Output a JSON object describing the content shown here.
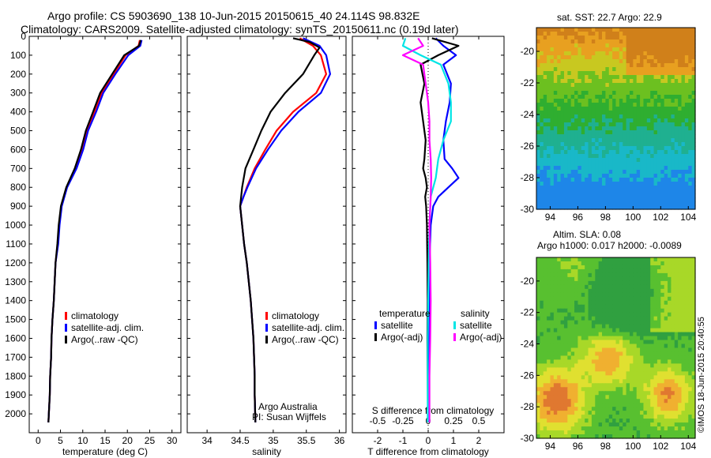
{
  "title": {
    "line1": "Argo profile: CS 5903690_138 10-Jun-2015 20150615_40 24.114S 98.832E",
    "line2": "Climatology: CARS2009. Satellite-adjusted climatology: synTS_20150611.nc (0.19d later)"
  },
  "colors": {
    "climatology": "#ff0000",
    "satellite": "#0000ff",
    "argo": "#000000",
    "sat_salinity": "#00e5e5",
    "argo_salinity": "#ff00ff"
  },
  "chart_data": [
    {
      "type": "line",
      "xlabel": "temperature (deg C)",
      "ylabel": "",
      "xlim": [
        -2,
        32
      ],
      "ylim": [
        2100,
        0
      ],
      "xticks": [
        "0",
        "5",
        "10",
        "15",
        "20",
        "25",
        "30"
      ],
      "yticks": [
        "0",
        "100",
        "200",
        "300",
        "400",
        "500",
        "600",
        "700",
        "800",
        "900",
        "1000",
        "1100",
        "1200",
        "1300",
        "1400",
        "1500",
        "1600",
        "1700",
        "1800",
        "1900",
        "2000"
      ],
      "legend": [
        "climatology",
        "satellite-adj. clim.",
        "Argo(..raw -QC)"
      ],
      "legend_position": "lower-center",
      "series": [
        {
          "name": "climatology",
          "x": [
            22.8,
            22.5,
            19.6,
            16.9,
            14.2,
            12.6,
            10.9,
            9.8,
            8.4,
            6.4,
            5.2,
            4.7,
            4.4,
            3.9,
            3.5,
            3.2,
            3.0,
            2.9,
            2.7,
            2.6,
            2.4,
            2.3
          ],
          "y": [
            20,
            50,
            100,
            200,
            300,
            400,
            500,
            600,
            700,
            800,
            900,
            1000,
            1100,
            1200,
            1400,
            1500,
            1600,
            1700,
            1800,
            1900,
            2000,
            2045
          ]
        },
        {
          "name": "satellite-adj. clim.",
          "x": [
            23.2,
            22.9,
            20.2,
            17.3,
            14.6,
            13.0,
            11.2,
            10.1,
            8.6,
            6.5,
            5.3,
            4.8,
            4.5,
            3.9,
            3.5,
            3.2,
            3.0,
            2.9,
            2.7,
            2.6,
            2.4,
            2.3
          ],
          "y": [
            20,
            50,
            100,
            200,
            300,
            400,
            500,
            600,
            700,
            800,
            900,
            1000,
            1100,
            1200,
            1400,
            1500,
            1600,
            1700,
            1800,
            1900,
            2000,
            2045
          ]
        },
        {
          "name": "Argo(..raw -QC)",
          "x": [
            23.0,
            22.6,
            19.3,
            16.6,
            13.9,
            12.3,
            10.7,
            9.6,
            8.2,
            6.3,
            5.1,
            4.6,
            4.3,
            3.9,
            3.5,
            3.2,
            3.0,
            2.9,
            2.7,
            2.6,
            2.4,
            2.3
          ],
          "y": [
            20,
            50,
            100,
            200,
            300,
            400,
            500,
            600,
            700,
            800,
            900,
            1000,
            1100,
            1200,
            1400,
            1500,
            1600,
            1700,
            1800,
            1900,
            2000,
            2045
          ]
        }
      ]
    },
    {
      "type": "line",
      "xlabel": "salinity",
      "xlim": [
        33.7,
        36.1
      ],
      "ylim": [
        2100,
        0
      ],
      "xticks": [
        "34",
        "34.5",
        "35",
        "35.5",
        "36"
      ],
      "legend": [
        "climatology",
        "satellite-adj. clim.",
        "Argo(..raw -QC)"
      ],
      "legend_position": "lower-right",
      "annotations": [
        "Argo Australia",
        "PI: Susan Wijffels"
      ],
      "series": [
        {
          "name": "climatology",
          "x": [
            35.4,
            35.6,
            35.72,
            35.8,
            35.65,
            35.3,
            35.05,
            34.88,
            34.72,
            34.6,
            34.55,
            34.5,
            34.53,
            34.56,
            34.6,
            34.63,
            34.66,
            34.68,
            34.7,
            34.71,
            34.72,
            34.72,
            34.73
          ],
          "y": [
            10,
            50,
            100,
            200,
            300,
            400,
            500,
            600,
            700,
            800,
            850,
            900,
            1000,
            1100,
            1200,
            1300,
            1400,
            1500,
            1600,
            1700,
            1800,
            1900,
            2045
          ]
        },
        {
          "name": "satellite-adj. clim.",
          "x": [
            35.45,
            35.7,
            35.8,
            35.86,
            35.72,
            35.38,
            35.12,
            34.92,
            34.74,
            34.61,
            34.55,
            34.5,
            34.53,
            34.56,
            34.6,
            34.63,
            34.66,
            34.68,
            34.7,
            34.71,
            34.72,
            34.72,
            34.73
          ],
          "y": [
            10,
            50,
            100,
            200,
            300,
            400,
            500,
            600,
            700,
            800,
            850,
            900,
            1000,
            1100,
            1200,
            1300,
            1400,
            1500,
            1600,
            1700,
            1800,
            1900,
            2045
          ]
        },
        {
          "name": "Argo(..raw -QC)",
          "x": [
            35.3,
            35.55,
            35.7,
            35.62,
            35.45,
            35.18,
            34.96,
            34.82,
            34.7,
            34.58,
            34.53,
            34.5,
            34.53,
            34.56,
            34.6,
            34.63,
            34.66,
            34.68,
            34.7,
            34.71,
            34.72,
            34.72,
            34.73
          ],
          "y": [
            10,
            30,
            60,
            100,
            200,
            300,
            400,
            500,
            600,
            700,
            800,
            900,
            1000,
            1100,
            1200,
            1300,
            1400,
            1500,
            1600,
            1700,
            1800,
            1900,
            2045
          ]
        }
      ]
    },
    {
      "type": "line",
      "xlabel": "T difference from climatology",
      "xlim": [
        -3,
        3
      ],
      "ylim": [
        2100,
        0
      ],
      "xticks": [
        "-2",
        "-1",
        "0",
        "1",
        "2"
      ],
      "top_axis_label": "S difference from climatology",
      "top_xticks": [
        "-0.5",
        "-0.25",
        "0",
        "0.25",
        "0.5"
      ],
      "legend_groups": [
        {
          "title": "temperature",
          "entries": [
            "satellite",
            "Argo(-adj)"
          ]
        },
        {
          "title": "salinity",
          "entries": [
            "satellite",
            "Argo(-adj)"
          ]
        }
      ],
      "series": [
        {
          "name": "satellite",
          "group": "temperature",
          "x": [
            0.3,
            0.6,
            1.1,
            0.6,
            0.9,
            0.85,
            0.7,
            0.6,
            0.65,
            0.95,
            1.2,
            0.8,
            0.4,
            0.2,
            0.1,
            0.05,
            0.03,
            0.02,
            0.01,
            0.0
          ],
          "y": [
            10,
            50,
            100,
            150,
            250,
            350,
            450,
            550,
            650,
            700,
            750,
            800,
            850,
            900,
            1000,
            1200,
            1400,
            1600,
            1800,
            2045
          ]
        },
        {
          "name": "Argo(-adj)",
          "group": "temperature",
          "x": [
            0.15,
            1.2,
            0.4,
            -0.3,
            -0.15,
            -0.3,
            -0.2,
            -0.1,
            -0.15,
            -0.2,
            -0.1,
            -0.05,
            -0.12,
            -0.08,
            -0.05,
            -0.03,
            -0.02,
            -0.03,
            -0.02,
            -0.01
          ],
          "y": [
            10,
            50,
            100,
            150,
            250,
            350,
            450,
            550,
            650,
            700,
            750,
            800,
            850,
            900,
            1000,
            1200,
            1400,
            1600,
            1800,
            2045
          ]
        },
        {
          "name": "satellite",
          "group": "salinity",
          "x": [
            -0.9,
            -1.0,
            -0.3,
            0.5,
            0.8,
            0.9,
            0.9,
            0.6,
            0.4,
            0.3,
            0.1,
            0.05,
            0.02,
            0.0,
            -0.02,
            -0.02,
            -0.02
          ],
          "y": [
            10,
            50,
            100,
            150,
            250,
            350,
            450,
            550,
            650,
            750,
            850,
            1000,
            1200,
            1400,
            1600,
            1800,
            2045
          ]
        },
        {
          "name": "Argo(-adj)",
          "group": "salinity",
          "x": [
            -0.4,
            -0.2,
            -1.0,
            -0.2,
            -0.1,
            0.0,
            0.05,
            0.05,
            0.1,
            0.12,
            0.1,
            0.05,
            0.08,
            0.1,
            0.08,
            0.05,
            0.05
          ],
          "y": [
            10,
            50,
            100,
            150,
            250,
            350,
            450,
            550,
            650,
            750,
            850,
            1000,
            1200,
            1400,
            1600,
            1800,
            2045
          ]
        }
      ]
    },
    {
      "type": "heatmap",
      "title": "sat. SST: 22.7  Argo: 22.9",
      "xlim": [
        93,
        104.5
      ],
      "ylim": [
        -30,
        -18.5
      ],
      "xticks": [
        "94",
        "96",
        "98",
        "100",
        "102",
        "104"
      ],
      "yticks": [
        "-20",
        "-22",
        "-24",
        "-26",
        "-28",
        "-30"
      ]
    },
    {
      "type": "heatmap",
      "title_line1": "Altim. SLA: 0.08",
      "title_line2": "Argo h1000: 0.017  h2000: -0.0089",
      "xlim": [
        93,
        104.5
      ],
      "ylim": [
        -30,
        -18.5
      ],
      "xticks": [
        "94",
        "96",
        "98",
        "100",
        "102",
        "104"
      ],
      "yticks": [
        "-20",
        "-22",
        "-24",
        "-26",
        "-28",
        "-30"
      ]
    }
  ],
  "credit": "©IMOS 18-Jun-2015 20:40:55"
}
